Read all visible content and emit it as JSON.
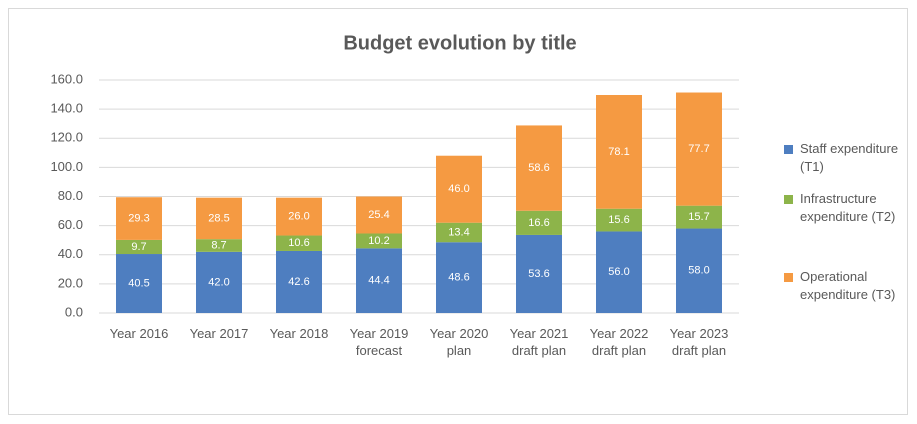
{
  "chart_data": {
    "type": "stacked_bar",
    "title": "Budget evolution by title",
    "categories": [
      "Year 2016",
      "Year 2017",
      "Year 2018",
      "Year 2019 forecast",
      "Year 2020 plan",
      "Year 2021 draft plan",
      "Year 2022 draft plan",
      "Year 2023 draft plan"
    ],
    "series": [
      {
        "name": "Staff expenditure (T1)",
        "color": "#4e7ec0",
        "values": [
          40.5,
          42.0,
          42.6,
          44.4,
          48.6,
          53.6,
          56.0,
          58.0
        ],
        "value_labels": [
          "40.5",
          "42.0",
          "42.6",
          "44.4",
          "48.6",
          "53.6",
          "56.0",
          "58.0"
        ]
      },
      {
        "name": "Infrastructure expenditure (T2)",
        "color": "#8db44a",
        "values": [
          9.7,
          8.7,
          10.6,
          10.2,
          13.4,
          16.6,
          15.6,
          15.7
        ],
        "value_labels": [
          "9.7",
          "8.7",
          "10.6",
          "10.2",
          "13.4",
          "16.6",
          "15.6",
          "15.7"
        ]
      },
      {
        "name": "Operational expenditure (T3)",
        "color": "#f59a42",
        "values": [
          29.3,
          28.5,
          26.0,
          25.4,
          46.0,
          58.6,
          78.1,
          77.7
        ],
        "value_labels": [
          "29.3",
          "28.5",
          "26.0",
          "25.4",
          "46.0",
          "58.6",
          "78.1",
          "77.7"
        ]
      }
    ],
    "ylim": [
      0,
      160
    ],
    "yticks": [
      {
        "value": 0,
        "label": "0.0"
      },
      {
        "value": 20,
        "label": "20.0"
      },
      {
        "value": 40,
        "label": "40.0"
      },
      {
        "value": 60,
        "label": "60.0"
      },
      {
        "value": 80,
        "label": "80.0"
      },
      {
        "value": 100,
        "label": "100.0"
      },
      {
        "value": 120,
        "label": "120.0"
      },
      {
        "value": 140,
        "label": "140.0"
      },
      {
        "value": 160,
        "label": "160.0"
      }
    ],
    "grid": true,
    "legend": "right"
  }
}
